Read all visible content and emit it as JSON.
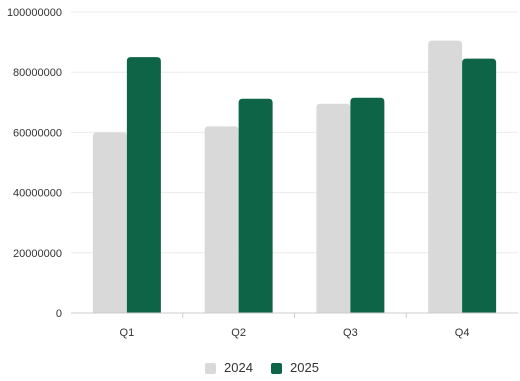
{
  "chart_data": {
    "type": "bar",
    "categories": [
      "Q1",
      "Q2",
      "Q3",
      "Q4"
    ],
    "series": [
      {
        "name": "2024",
        "color": "#d9d9d9",
        "values": [
          60000000,
          62000000,
          69500000,
          90500000
        ]
      },
      {
        "name": "2025",
        "color": "#0d6446",
        "values": [
          85000000,
          71200000,
          71500000,
          84500000
        ]
      }
    ],
    "ylim": [
      0,
      100000000
    ],
    "yticks": [
      "0",
      "20000000",
      "40000000",
      "60000000",
      "80000000",
      "100000000"
    ],
    "grid": true,
    "legend": "bottom"
  }
}
